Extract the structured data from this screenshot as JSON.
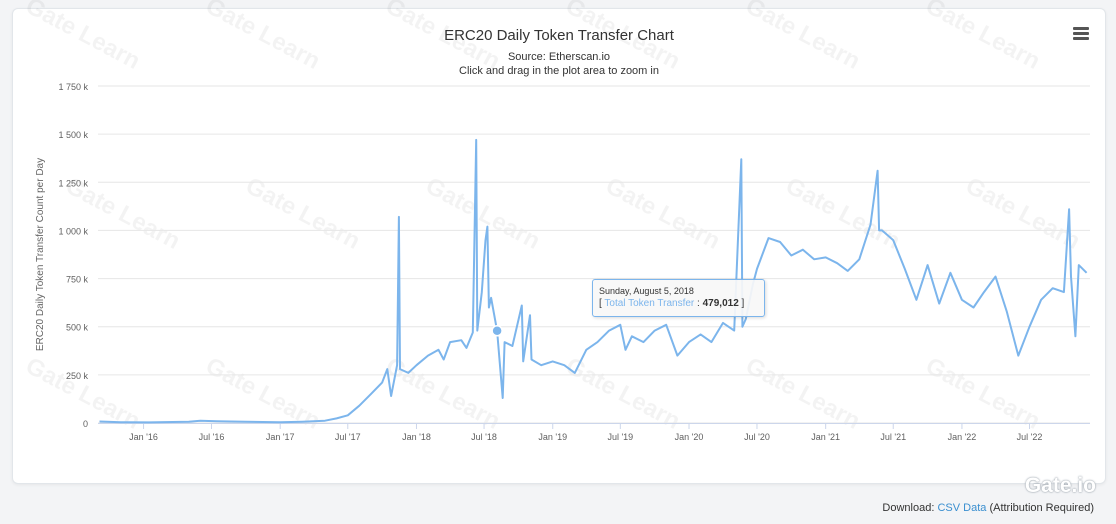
{
  "header": {
    "title": "ERC20 Daily Token Transfer Chart",
    "source": "Source: Etherscan.io",
    "hint": "Click and drag in the plot area to zoom in"
  },
  "tooltip": {
    "date": "Sunday, August 5, 2018",
    "open": "[",
    "series": "Total Token Transfer",
    "sep": ":",
    "value": "479,012",
    "close": "]"
  },
  "footer": {
    "prefix": "Download:",
    "link": "CSV Data",
    "suffix": "(Attribution Required)"
  },
  "watermark": {
    "text": "Gate Learn"
  },
  "logo": {
    "text": "Gate.io"
  },
  "colors": {
    "line": "#7cb5ec",
    "grid": "#e6e6e6",
    "text": "#333333"
  },
  "chart_data": {
    "type": "line",
    "title": "ERC20 Daily Token Transfer Chart",
    "subtitle": "Source: Etherscan.io",
    "ylabel": "ERC20 Daily Token Transfer Count per Day",
    "xlabel": "",
    "ylim": [
      0,
      1750000
    ],
    "yticks": [
      0,
      250000,
      500000,
      750000,
      1000000,
      1250000,
      1500000,
      1750000
    ],
    "ytick_labels": [
      "0",
      "250 k",
      "500 k",
      "750 k",
      "1 000 k",
      "1 250 k",
      "1 500 k",
      "1 750 k"
    ],
    "xlim": [
      "2015-09-01",
      "2022-12-10"
    ],
    "xticks": [
      "2016-01-01",
      "2016-07-01",
      "2017-01-01",
      "2017-07-01",
      "2018-01-01",
      "2018-07-01",
      "2019-01-01",
      "2019-07-01",
      "2020-01-01",
      "2020-07-01",
      "2021-01-01",
      "2021-07-01",
      "2022-01-01",
      "2022-07-01"
    ],
    "xtick_labels": [
      "Jan '16",
      "Jul '16",
      "Jan '17",
      "Jul '17",
      "Jan '18",
      "Jul '18",
      "Jan '19",
      "Jul '19",
      "Jan '20",
      "Jul '20",
      "Jan '21",
      "Jul '21",
      "Jan '22",
      "Jul '22"
    ],
    "grid": true,
    "legend": "none",
    "highlight": {
      "x": "2018-08-05",
      "y": 479012
    },
    "series": [
      {
        "name": "Total Token Transfer",
        "points": [
          [
            "2015-09-05",
            8000
          ],
          [
            "2015-11-01",
            4000
          ],
          [
            "2016-01-15",
            3000
          ],
          [
            "2016-05-01",
            6000
          ],
          [
            "2016-06-01",
            12000
          ],
          [
            "2016-07-15",
            9000
          ],
          [
            "2016-10-01",
            6000
          ],
          [
            "2017-01-01",
            4000
          ],
          [
            "2017-03-01",
            7000
          ],
          [
            "2017-05-01",
            12000
          ],
          [
            "2017-06-01",
            24000
          ],
          [
            "2017-07-01",
            40000
          ],
          [
            "2017-08-01",
            90000
          ],
          [
            "2017-09-01",
            150000
          ],
          [
            "2017-10-01",
            210000
          ],
          [
            "2017-10-15",
            280000
          ],
          [
            "2017-10-25",
            140000
          ],
          [
            "2017-11-10",
            300000
          ],
          [
            "2017-11-15",
            1070000
          ],
          [
            "2017-11-18",
            280000
          ],
          [
            "2017-12-10",
            260000
          ],
          [
            "2018-01-01",
            300000
          ],
          [
            "2018-02-01",
            350000
          ],
          [
            "2018-03-01",
            380000
          ],
          [
            "2018-03-15",
            330000
          ],
          [
            "2018-04-01",
            420000
          ],
          [
            "2018-05-01",
            430000
          ],
          [
            "2018-05-15",
            390000
          ],
          [
            "2018-06-01",
            470000
          ],
          [
            "2018-06-10",
            1470000
          ],
          [
            "2018-06-13",
            480000
          ],
          [
            "2018-06-25",
            680000
          ],
          [
            "2018-07-05",
            950000
          ],
          [
            "2018-07-10",
            1020000
          ],
          [
            "2018-07-14",
            600000
          ],
          [
            "2018-07-20",
            650000
          ],
          [
            "2018-08-05",
            479012
          ],
          [
            "2018-08-20",
            130000
          ],
          [
            "2018-08-25",
            420000
          ],
          [
            "2018-09-15",
            400000
          ],
          [
            "2018-10-10",
            610000
          ],
          [
            "2018-10-14",
            320000
          ],
          [
            "2018-11-01",
            560000
          ],
          [
            "2018-11-05",
            330000
          ],
          [
            "2018-12-01",
            300000
          ],
          [
            "2019-01-01",
            320000
          ],
          [
            "2019-02-01",
            300000
          ],
          [
            "2019-03-01",
            260000
          ],
          [
            "2019-04-01",
            380000
          ],
          [
            "2019-05-01",
            420000
          ],
          [
            "2019-06-01",
            480000
          ],
          [
            "2019-07-01",
            510000
          ],
          [
            "2019-07-15",
            380000
          ],
          [
            "2019-08-01",
            450000
          ],
          [
            "2019-09-01",
            420000
          ],
          [
            "2019-10-01",
            480000
          ],
          [
            "2019-11-01",
            510000
          ],
          [
            "2019-12-01",
            350000
          ],
          [
            "2020-01-01",
            420000
          ],
          [
            "2020-02-01",
            460000
          ],
          [
            "2020-03-01",
            420000
          ],
          [
            "2020-04-01",
            520000
          ],
          [
            "2020-05-01",
            480000
          ],
          [
            "2020-05-20",
            1370000
          ],
          [
            "2020-05-23",
            500000
          ],
          [
            "2020-06-01",
            540000
          ],
          [
            "2020-06-20",
            720000
          ],
          [
            "2020-07-01",
            800000
          ],
          [
            "2020-08-01",
            960000
          ],
          [
            "2020-09-01",
            940000
          ],
          [
            "2020-10-01",
            870000
          ],
          [
            "2020-11-01",
            900000
          ],
          [
            "2020-12-01",
            850000
          ],
          [
            "2021-01-01",
            860000
          ],
          [
            "2021-02-01",
            830000
          ],
          [
            "2021-03-01",
            790000
          ],
          [
            "2021-04-01",
            850000
          ],
          [
            "2021-05-01",
            1030000
          ],
          [
            "2021-05-20",
            1310000
          ],
          [
            "2021-05-24",
            1000000
          ],
          [
            "2021-06-01",
            1000000
          ],
          [
            "2021-07-01",
            950000
          ],
          [
            "2021-08-01",
            800000
          ],
          [
            "2021-09-01",
            640000
          ],
          [
            "2021-10-01",
            820000
          ],
          [
            "2021-11-01",
            620000
          ],
          [
            "2021-12-01",
            780000
          ],
          [
            "2022-01-01",
            640000
          ],
          [
            "2022-02-01",
            600000
          ],
          [
            "2022-03-01",
            680000
          ],
          [
            "2022-04-01",
            760000
          ],
          [
            "2022-05-01",
            580000
          ],
          [
            "2022-06-01",
            350000
          ],
          [
            "2022-07-01",
            500000
          ],
          [
            "2022-08-01",
            640000
          ],
          [
            "2022-09-01",
            700000
          ],
          [
            "2022-10-01",
            680000
          ],
          [
            "2022-10-15",
            1110000
          ],
          [
            "2022-10-20",
            760000
          ],
          [
            "2022-11-01",
            450000
          ],
          [
            "2022-11-10",
            820000
          ],
          [
            "2022-12-01",
            780000
          ]
        ]
      }
    ]
  }
}
